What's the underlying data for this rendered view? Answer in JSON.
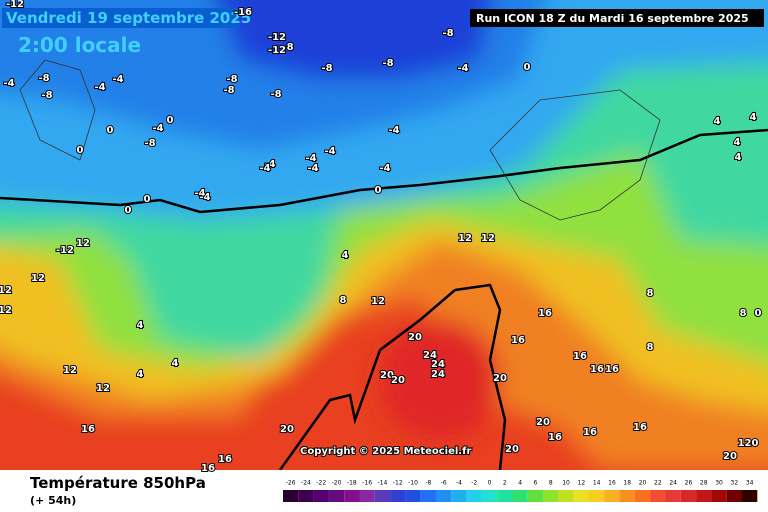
{
  "header": {
    "date": "Vendredi 19 septembre 2025",
    "time": "2:00 locale",
    "run": "Run ICON 18 Z du Mardi 16 septembre 2025",
    "copyright": "Copyright © 2025 Meteociel.fr"
  },
  "footer": {
    "title": "Température 850hPa",
    "lead": "(+ 54h)"
  },
  "scale": {
    "labels": [
      -26,
      -24,
      -22,
      -20,
      -18,
      -16,
      -14,
      -12,
      -10,
      -8,
      -6,
      -4,
      -2,
      0,
      2,
      4,
      6,
      8,
      10,
      12,
      14,
      16,
      18,
      20,
      22,
      24,
      26,
      28,
      30,
      32,
      34
    ],
    "colors": [
      "#2b0030",
      "#3d0050",
      "#550070",
      "#6a0a80",
      "#801090",
      "#8a2aa0",
      "#5a3ab8",
      "#3040d0",
      "#2050e0",
      "#2070f0",
      "#2090f0",
      "#20b0f0",
      "#20d0e8",
      "#20e0d0",
      "#20e0a0",
      "#30e070",
      "#60e040",
      "#90e030",
      "#c0e020",
      "#e8e020",
      "#f8d020",
      "#f8b020",
      "#f89020",
      "#f87020",
      "#f05030",
      "#e83838",
      "#d82828",
      "#c01818",
      "#a00808",
      "#700000",
      "#300000"
    ]
  },
  "contour_labels": [
    -12,
    -16,
    -12,
    -8,
    -12,
    -8,
    -8,
    -8,
    -4,
    0,
    -8,
    -4,
    -4,
    -8,
    -8,
    -8,
    -4,
    -8,
    0,
    -4,
    0,
    -8,
    0,
    -4,
    -4,
    -4,
    -4,
    -4,
    -4,
    -4,
    -4,
    -4,
    0,
    0,
    0,
    -12,
    12,
    12,
    12,
    12,
    4,
    8,
    12,
    12,
    12,
    16,
    16,
    16,
    16,
    16,
    8,
    8,
    4,
    4,
    4,
    4,
    8,
    0,
    4,
    4,
    4,
    12,
    12,
    16,
    16,
    16,
    20,
    20,
    24,
    24,
    24,
    20,
    20,
    20,
    20,
    16,
    16,
    16,
    20,
    20,
    120
  ]
}
